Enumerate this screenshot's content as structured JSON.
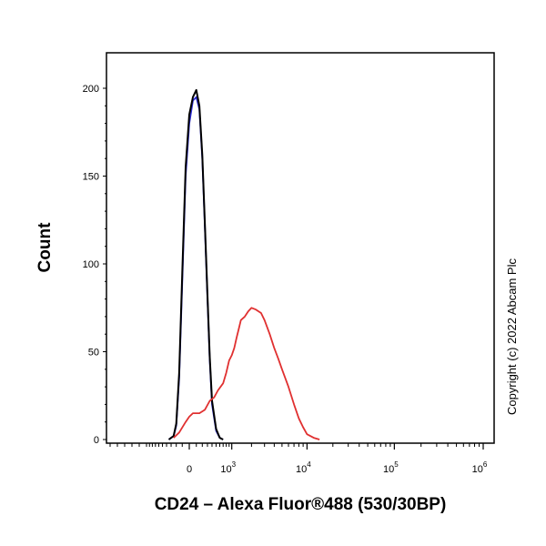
{
  "chart_data": {
    "type": "line",
    "xlabel": "CD24 – Alexa Fluor®488 (530/30BP)",
    "ylabel": "Count",
    "ylim": [
      0,
      200
    ],
    "x_scale": "biexponential",
    "y_ticks": [
      "0",
      "50",
      "100",
      "150",
      "200"
    ],
    "x_ticks": [
      {
        "label": "0",
        "value": 0
      },
      {
        "base": "10",
        "exp": "3",
        "value": 1000
      },
      {
        "base": "10",
        "exp": "4",
        "value": 10000
      },
      {
        "base": "10",
        "exp": "5",
        "value": 100000
      },
      {
        "base": "10",
        "exp": "6",
        "value": 1000000
      }
    ],
    "grid": false,
    "annotation": "Copyright (c) 2022 Abcam Plc",
    "series": [
      {
        "color": "#2b2bd6",
        "points": [
          [
            -350,
            0
          ],
          [
            -250,
            2
          ],
          [
            -200,
            8
          ],
          [
            -150,
            35
          ],
          [
            -100,
            90
          ],
          [
            -50,
            150
          ],
          [
            0,
            180
          ],
          [
            50,
            193
          ],
          [
            100,
            195
          ],
          [
            150,
            188
          ],
          [
            200,
            160
          ],
          [
            250,
            120
          ],
          [
            300,
            80
          ],
          [
            350,
            45
          ],
          [
            400,
            20
          ],
          [
            500,
            5
          ],
          [
            600,
            1
          ],
          [
            700,
            0
          ]
        ]
      },
      {
        "color": "#000000",
        "points": [
          [
            -350,
            0
          ],
          [
            -250,
            2
          ],
          [
            -200,
            9
          ],
          [
            -150,
            38
          ],
          [
            -100,
            95
          ],
          [
            -50,
            155
          ],
          [
            0,
            185
          ],
          [
            50,
            195
          ],
          [
            100,
            199
          ],
          [
            150,
            190
          ],
          [
            200,
            162
          ],
          [
            250,
            122
          ],
          [
            300,
            82
          ],
          [
            350,
            47
          ],
          [
            400,
            22
          ],
          [
            500,
            6
          ],
          [
            600,
            1
          ],
          [
            700,
            0
          ]
        ]
      },
      {
        "color": "#e03030",
        "points": [
          [
            -250,
            1
          ],
          [
            -150,
            4
          ],
          [
            -50,
            10
          ],
          [
            0,
            13
          ],
          [
            50,
            15
          ],
          [
            150,
            15
          ],
          [
            250,
            17
          ],
          [
            350,
            22
          ],
          [
            450,
            24
          ],
          [
            550,
            28
          ],
          [
            700,
            32
          ],
          [
            800,
            38
          ],
          [
            900,
            45
          ],
          [
            1000,
            48
          ],
          [
            1100,
            52
          ],
          [
            1200,
            58
          ],
          [
            1300,
            63
          ],
          [
            1400,
            68
          ],
          [
            1600,
            70
          ],
          [
            1800,
            73
          ],
          [
            2000,
            75
          ],
          [
            2300,
            74
          ],
          [
            2700,
            72
          ],
          [
            3000,
            68
          ],
          [
            3500,
            60
          ],
          [
            4000,
            52
          ],
          [
            4500,
            46
          ],
          [
            5000,
            40
          ],
          [
            6000,
            30
          ],
          [
            7000,
            20
          ],
          [
            8000,
            12
          ],
          [
            9000,
            7
          ],
          [
            10000,
            3
          ],
          [
            12000,
            1
          ],
          [
            14000,
            0
          ]
        ]
      }
    ]
  }
}
